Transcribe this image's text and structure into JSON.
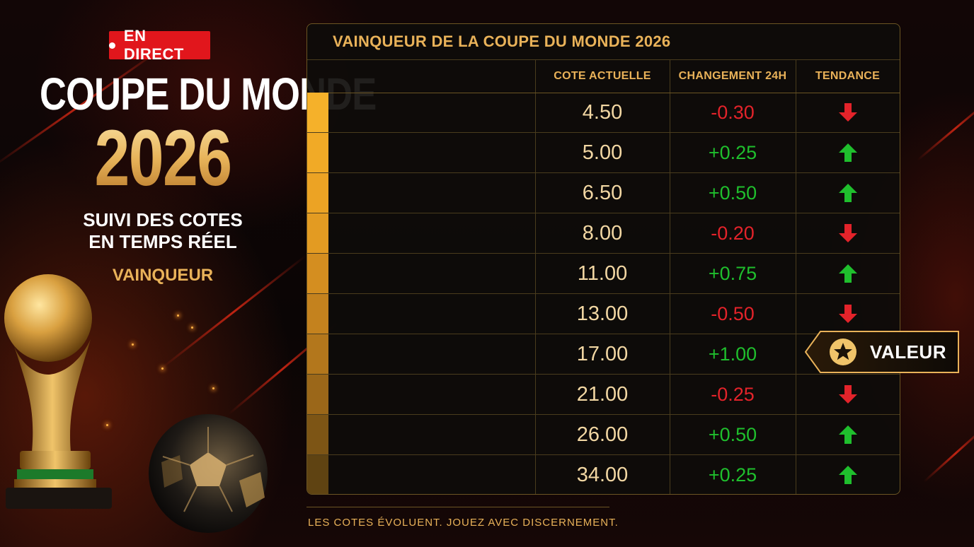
{
  "badge": {
    "label": "EN DIRECT"
  },
  "hero": {
    "title": "COUPE DU MONDE",
    "year": "2026",
    "subtitle_line1": "SUIVI DES COTES",
    "subtitle_line2": "EN TEMPS RÉEL",
    "category": "VAINQUEUR"
  },
  "table": {
    "title": "VAINQUEUR DE LA COUPE DU MONDE 2026",
    "headers": {
      "team": "",
      "odds": "COTE ACTUELLE",
      "change": "CHANGEMENT 24H",
      "trend": "TENDANCE"
    },
    "rows": [
      {
        "team": "",
        "odds": "4.50",
        "change": "-0.30",
        "direction": "down"
      },
      {
        "team": "",
        "odds": "5.00",
        "change": "+0.25",
        "direction": "up"
      },
      {
        "team": "",
        "odds": "6.50",
        "change": "+0.50",
        "direction": "up"
      },
      {
        "team": "",
        "odds": "8.00",
        "change": "-0.20",
        "direction": "down"
      },
      {
        "team": "",
        "odds": "11.00",
        "change": "+0.75",
        "direction": "up"
      },
      {
        "team": "",
        "odds": "13.00",
        "change": "-0.50",
        "direction": "down"
      },
      {
        "team": "",
        "odds": "17.00",
        "change": "+1.00",
        "direction": "up"
      },
      {
        "team": "",
        "odds": "21.00",
        "change": "-0.25",
        "direction": "down"
      },
      {
        "team": "",
        "odds": "26.00",
        "change": "+0.50",
        "direction": "up"
      },
      {
        "team": "",
        "odds": "34.00",
        "change": "+0.25",
        "direction": "up"
      }
    ]
  },
  "callout": {
    "label": "VALEUR",
    "icon": "star-icon"
  },
  "footer": {
    "disclaimer": "LES COTES ÉVOLUENT. JOUEZ AVEC DISCERNEMENT."
  },
  "colors": {
    "accent_gold": "#e9b259",
    "live_red": "#e1161c",
    "positive": "#1fbf2d",
    "negative": "#e3232a"
  }
}
